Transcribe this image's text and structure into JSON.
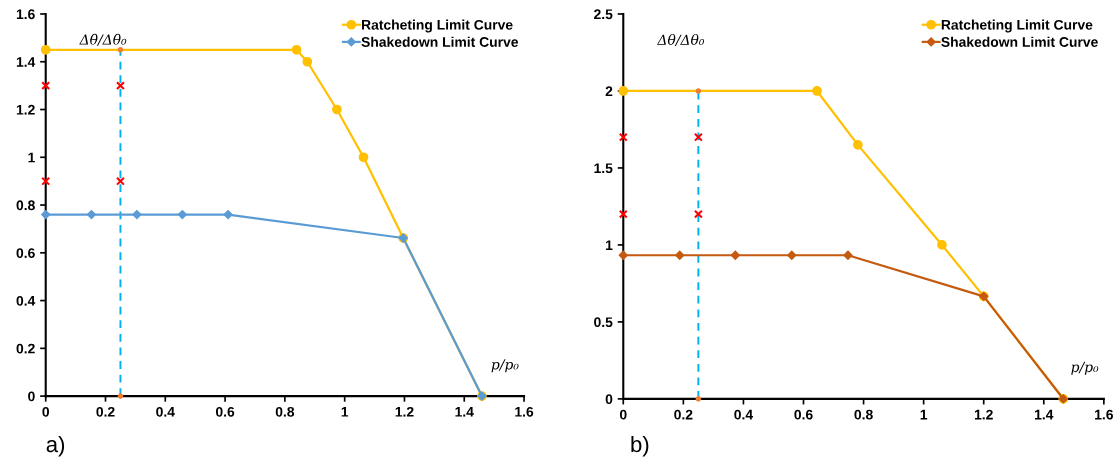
{
  "chart_data": [
    {
      "type": "line",
      "xlabel": "p/p₀",
      "ylabel": "Δθ/Δθ₀",
      "annotations": [
        "a)"
      ],
      "xlim": [
        0,
        1.6
      ],
      "xticks": [
        0,
        0.2,
        0.4,
        0.6,
        0.8,
        1,
        1.2,
        1.4,
        1.6
      ],
      "ylim": [
        0,
        1.6
      ],
      "yticks": [
        0,
        0.2,
        0.4,
        0.6,
        0.8,
        1,
        1.2,
        1.4,
        1.6
      ],
      "grid": false,
      "legend": "top right",
      "series": [
        {
          "type": "line",
          "x": [
            0.25,
            0.25
          ],
          "values": [
            0,
            1.45
          ],
          "color": "#00b0f0",
          "line_style": "dashed",
          "marker": "none"
        },
        {
          "type": "scatter",
          "x": [
            0.25,
            0.25
          ],
          "values": [
            0,
            1.45
          ],
          "color": "#ed7d31",
          "marker": "circle"
        },
        {
          "name": "Ratcheting Limit Curve",
          "type": "line",
          "x": [
            0,
            0.839,
            0.875,
            0.974,
            1.063,
            1.196,
            1.459
          ],
          "values": [
            1.45,
            1.45,
            1.4,
            1.2,
            1.0,
            0.662,
            0
          ],
          "color": "#ffc000",
          "marker": "circle"
        },
        {
          "name": "Shakedown Limit Curve",
          "type": "line",
          "x": [
            0,
            0.153,
            0.305,
            0.457,
            0.61,
            1.196,
            1.459
          ],
          "values": [
            0.76,
            0.76,
            0.76,
            0.76,
            0.76,
            0.662,
            0
          ],
          "color": "#5b9bd5",
          "marker": "diamond"
        },
        {
          "type": "scatter",
          "x": [
            0,
            0,
            0.25,
            0.25
          ],
          "values": [
            1.3,
            0.9,
            1.3,
            0.9
          ],
          "color": "#ff0000",
          "marker": "cross"
        }
      ]
    },
    {
      "type": "line",
      "xlabel": "p/p₀",
      "ylabel": "Δθ/Δθ₀",
      "annotations": [
        "b)"
      ],
      "xlim": [
        0,
        1.6
      ],
      "xticks": [
        0,
        0.2,
        0.4,
        0.6,
        0.8,
        1,
        1.2,
        1.4,
        1.6
      ],
      "ylim": [
        0,
        2.5
      ],
      "yticks": [
        0,
        0.5,
        1,
        1.5,
        2,
        2.5
      ],
      "grid": false,
      "legend": "top right",
      "series": [
        {
          "type": "line",
          "x": [
            0.25,
            0.25
          ],
          "values": [
            0,
            2
          ],
          "color": "#00b0f0",
          "line_style": "dashed",
          "marker": "none"
        },
        {
          "type": "scatter",
          "x": [
            0.25,
            0.25
          ],
          "values": [
            0,
            2
          ],
          "color": "#ed7d31",
          "marker": "circle"
        },
        {
          "name": "Ratcheting Limit Curve",
          "type": "line",
          "x": [
            0,
            0.645,
            0.781,
            1.061,
            1.2,
            1.465
          ],
          "values": [
            2,
            2,
            1.65,
            1.0,
            0.666,
            0
          ],
          "color": "#ffc000",
          "marker": "circle"
        },
        {
          "name": "Shakedown Limit Curve",
          "type": "line",
          "x": [
            0,
            0.188,
            0.373,
            0.561,
            0.748,
            1.2,
            1.465
          ],
          "values": [
            0.933,
            0.933,
            0.933,
            0.933,
            0.933,
            0.666,
            0
          ],
          "color": "#c55a11",
          "marker": "diamond"
        },
        {
          "type": "scatter",
          "x": [
            0,
            0,
            0.25,
            0.25
          ],
          "values": [
            1.7,
            1.2,
            1.7,
            1.2
          ],
          "color": "#ff0000",
          "marker": "cross"
        }
      ]
    }
  ]
}
